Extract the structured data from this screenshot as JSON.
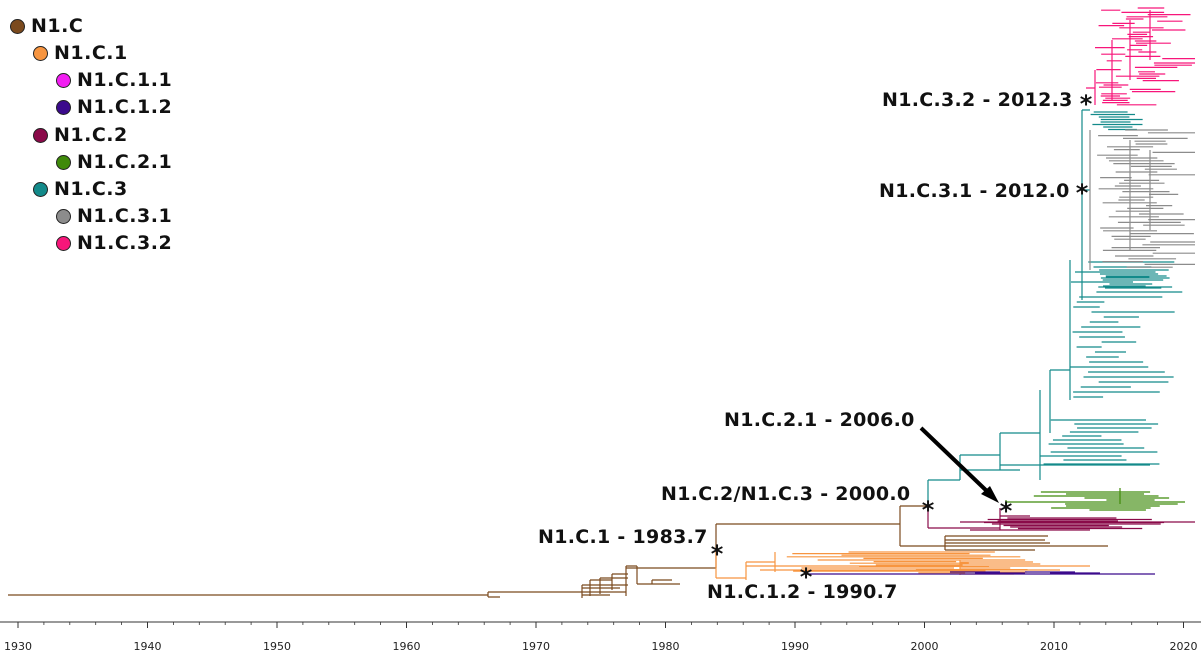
{
  "legend": [
    {
      "label": "N1.C",
      "color": "#7b4a1e",
      "level": 0
    },
    {
      "label": "N1.C.1",
      "color": "#f79540",
      "level": 1
    },
    {
      "label": "N1.C.1.1",
      "color": "#f21ef2",
      "level": 2
    },
    {
      "label": "N1.C.1.2",
      "color": "#3b0a8c",
      "level": 2
    },
    {
      "label": "N1.C.2",
      "color": "#8a0a49",
      "level": 1
    },
    {
      "label": "N1.C.2.1",
      "color": "#3f8a0a",
      "level": 2
    },
    {
      "label": "N1.C.3",
      "color": "#138a8a",
      "level": 1
    },
    {
      "label": "N1.C.3.1",
      "color": "#8c8c8c",
      "level": 2
    },
    {
      "label": "N1.C.3.2",
      "color": "#f7167a",
      "level": 2
    }
  ],
  "annotations": [
    {
      "id": "c32",
      "text": "N1.C.3.2 - 2012.3",
      "year": 2012.3
    },
    {
      "id": "c31",
      "text": "N1.C.3.1 - 2012.0",
      "year": 2012.0
    },
    {
      "id": "c21",
      "text": "N1.C.2.1 - 2006.0",
      "year": 2006.0
    },
    {
      "id": "c23",
      "text": "N1.C.2/N1.C.3 - 2000.0",
      "year": 2000.0
    },
    {
      "id": "c1",
      "text": "N1.C.1 - 1983.7",
      "year": 1983.7
    },
    {
      "id": "c12",
      "text": "N1.C.1.2 - 1990.7",
      "year": 1990.7
    }
  ],
  "axis": {
    "ticks": [
      "1930",
      "1940",
      "1950",
      "1960",
      "1970",
      "1980",
      "1990",
      "2000",
      "2010",
      "2020"
    ],
    "min": 1930,
    "max": 2020
  },
  "colors": {
    "n1c": "#7b4a1e",
    "n1c1": "#f79540",
    "n1c11": "#f21ef2",
    "n1c12": "#3b0a8c",
    "n1c2": "#8a0a49",
    "n1c21": "#3f8a0a",
    "n1c3": "#138a8a",
    "n1c31": "#8c8c8c",
    "n1c32": "#f7167a"
  }
}
